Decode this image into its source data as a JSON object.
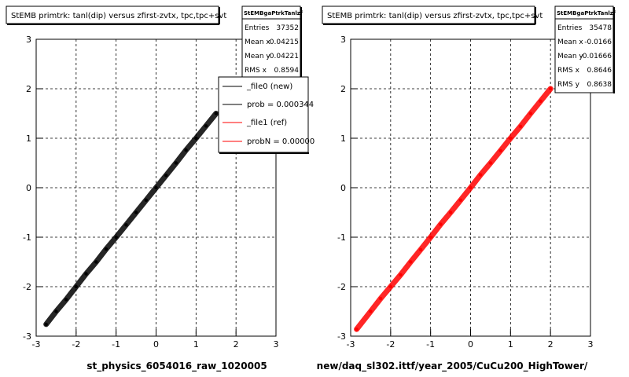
{
  "panels": [
    {
      "title": "StEMB primtrk: tanl(dip) versus zfirst-zvtx, tpc,tpc+svt",
      "stats": {
        "name": "StEMBgaPtrkTanlzf",
        "rows": [
          {
            "label": "Entries",
            "value": "37352"
          },
          {
            "label": "Mean x",
            "value": "-0.04215"
          },
          {
            "label": "Mean y",
            "value": "-0.04221"
          },
          {
            "label": "RMS x",
            "value": "0.8594"
          }
        ]
      },
      "legend": [
        {
          "label": "_file0 (new)",
          "color": "#000000"
        },
        {
          "label": "prob = 0.000344",
          "color": "#000000"
        },
        {
          "label": "_file1 (ref)",
          "color": "#ff0000"
        },
        {
          "label": "probN = 0.00000",
          "color": "#ff0000"
        }
      ],
      "footer": "st_physics_6054016_raw_1020005"
    },
    {
      "title": "StEMB primtrk: tanl(dip) versus zfirst-zvtx, tpc,tpc+svt",
      "stats": {
        "name": "StEMBgaPtrkTanlzf",
        "rows": [
          {
            "label": "Entries",
            "value": "35478"
          },
          {
            "label": "Mean x",
            "value": "-0.0166"
          },
          {
            "label": "Mean y",
            "value": "-0.01666"
          },
          {
            "label": "RMS x",
            "value": "0.8646"
          },
          {
            "label": "RMS y",
            "value": "0.8638"
          }
        ]
      },
      "legend": [],
      "footer": "new/daq_sl302.ittf/year_2005/CuCu200_HighTower/"
    }
  ],
  "chart_data": [
    {
      "type": "scatter",
      "title": "StEMB primtrk: tanl(dip) versus zfirst-zvtx, tpc,tpc+svt",
      "xlabel": "",
      "ylabel": "",
      "xlim": [
        -3,
        3
      ],
      "ylim": [
        -3,
        3
      ],
      "x_ticks": [
        "-3",
        "-2",
        "-1",
        "0",
        "1",
        "2",
        "3"
      ],
      "y_ticks": [
        "-3",
        "-2",
        "-1",
        "0",
        "1",
        "2",
        "3"
      ],
      "grid": true,
      "series": [
        {
          "color": "#000000",
          "x": [
            -2.75,
            -2.5,
            -2.25,
            -2.0,
            -1.75,
            -1.5,
            -1.25,
            -1.0,
            -0.75,
            -0.5,
            -0.25,
            0.0,
            0.25,
            0.5,
            0.75,
            1.0,
            1.25,
            1.5
          ],
          "y": [
            -2.76,
            -2.5,
            -2.26,
            -2.0,
            -1.74,
            -1.5,
            -1.24,
            -1.0,
            -0.75,
            -0.5,
            -0.25,
            0.0,
            0.25,
            0.5,
            0.76,
            1.0,
            1.25,
            1.5
          ]
        }
      ]
    },
    {
      "type": "scatter",
      "title": "StEMB primtrk: tanl(dip) versus zfirst-zvtx, tpc,tpc+svt",
      "xlabel": "",
      "ylabel": "",
      "xlim": [
        -3,
        3
      ],
      "ylim": [
        -3,
        3
      ],
      "x_ticks": [
        "-3",
        "-2",
        "-1",
        "0",
        "1",
        "2",
        "3"
      ],
      "y_ticks": [
        "-3",
        "-2",
        "-1",
        "0",
        "1",
        "2",
        "3"
      ],
      "grid": true,
      "series": [
        {
          "color": "#ff0000",
          "x": [
            -2.85,
            -2.5,
            -2.25,
            -2.0,
            -1.75,
            -1.5,
            -1.25,
            -1.0,
            -0.75,
            -0.5,
            -0.25,
            0.0,
            0.25,
            0.5,
            0.75,
            1.0,
            1.25,
            1.5,
            1.75,
            2.0
          ],
          "y": [
            -2.86,
            -2.5,
            -2.24,
            -2.0,
            -1.76,
            -1.5,
            -1.25,
            -1.0,
            -0.74,
            -0.5,
            -0.25,
            0.0,
            0.26,
            0.5,
            0.75,
            1.0,
            1.24,
            1.5,
            1.75,
            2.0
          ]
        }
      ]
    }
  ]
}
